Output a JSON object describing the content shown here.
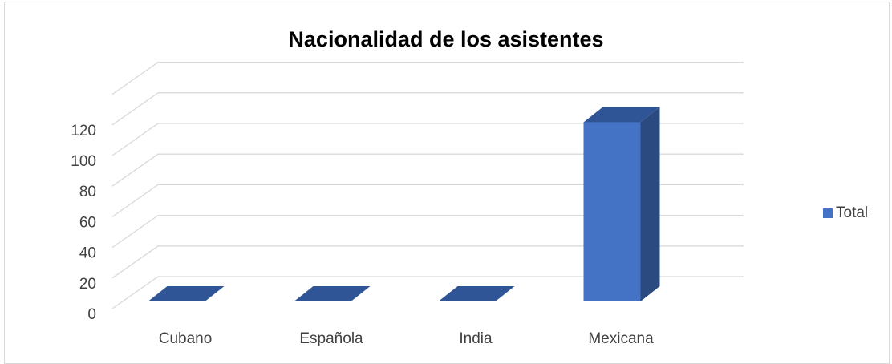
{
  "chart_data": {
    "type": "bar",
    "title": "Nacionalidad de los asistentes",
    "categories": [
      "Cubano",
      "Española",
      "India",
      "Mexicana"
    ],
    "series": [
      {
        "name": "Total",
        "values": [
          0,
          0,
          0,
          117
        ]
      }
    ],
    "ylim": [
      0,
      140
    ],
    "yticks": [
      0,
      20,
      40,
      60,
      80,
      100,
      120
    ],
    "grid": true,
    "legend_position": "right",
    "style": "3d-column"
  },
  "colors": {
    "bar_front": "#4472c4",
    "bar_side": "#2b4a80",
    "bar_top": "#2f5597",
    "gridline": "#d9d9d9",
    "legend_swatch": "#4472c4"
  }
}
